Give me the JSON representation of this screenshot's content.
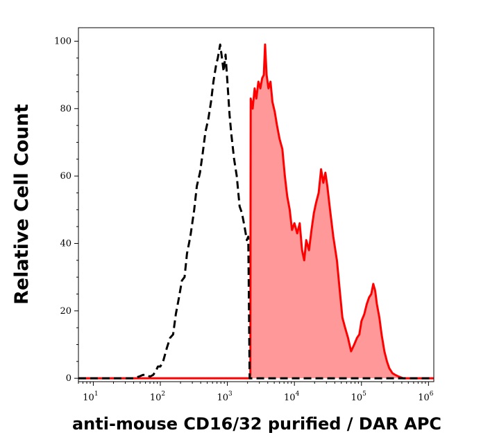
{
  "chart_data": {
    "type": "area",
    "title": "",
    "xlabel": "anti-mouse CD16/32 purified / DAR APC",
    "ylabel": "Relative Cell Count",
    "x_scale": "log",
    "xlim": [
      6,
      1200000
    ],
    "ylim": [
      -1,
      104
    ],
    "x_ticks": [
      {
        "base": "10",
        "exp": "1",
        "value": 10
      },
      {
        "base": "10",
        "exp": "2",
        "value": 100
      },
      {
        "base": "10",
        "exp": "3",
        "value": 1000
      },
      {
        "base": "10",
        "exp": "4",
        "value": 10000
      },
      {
        "base": "10",
        "exp": "5",
        "value": 100000
      },
      {
        "base": "10",
        "exp": "6",
        "value": 1000000
      }
    ],
    "y_ticks": [
      "0",
      "20",
      "40",
      "60",
      "80",
      "100"
    ],
    "grid": false,
    "series": [
      {
        "style": "dashed-black",
        "color": "#000000",
        "points": [
          [
            6,
            0
          ],
          [
            40,
            0
          ],
          [
            48,
            0.5
          ],
          [
            55,
            1
          ],
          [
            62,
            1
          ],
          [
            70,
            0.5
          ],
          [
            78,
            1
          ],
          [
            85,
            2
          ],
          [
            92,
            3.5
          ],
          [
            100,
            3.5
          ],
          [
            110,
            5
          ],
          [
            125,
            9
          ],
          [
            140,
            12
          ],
          [
            155,
            13
          ],
          [
            170,
            19
          ],
          [
            190,
            24
          ],
          [
            210,
            29
          ],
          [
            230,
            30
          ],
          [
            250,
            37
          ],
          [
            280,
            42
          ],
          [
            320,
            50
          ],
          [
            350,
            57
          ],
          [
            390,
            61
          ],
          [
            430,
            67
          ],
          [
            470,
            73
          ],
          [
            520,
            77
          ],
          [
            570,
            82
          ],
          [
            620,
            88
          ],
          [
            680,
            93
          ],
          [
            720,
            95
          ],
          [
            780,
            99
          ],
          [
            830,
            95
          ],
          [
            880,
            91
          ],
          [
            940,
            96
          ],
          [
            1000,
            88
          ],
          [
            1080,
            78
          ],
          [
            1150,
            72
          ],
          [
            1260,
            65
          ],
          [
            1380,
            60
          ],
          [
            1520,
            51
          ],
          [
            1650,
            49
          ],
          [
            1800,
            45
          ],
          [
            1950,
            41
          ],
          [
            2050,
            42
          ],
          [
            2150,
            0
          ],
          [
            2400,
            0
          ],
          [
            1200000,
            0
          ]
        ]
      },
      {
        "style": "filled-red",
        "color": "#ff0000",
        "fill": "#ff9999",
        "points": [
          [
            6,
            0
          ],
          [
            2150,
            0
          ],
          [
            2200,
            1
          ],
          [
            2230,
            83
          ],
          [
            2380,
            80
          ],
          [
            2550,
            86
          ],
          [
            2700,
            83
          ],
          [
            2900,
            88
          ],
          [
            3100,
            86
          ],
          [
            3300,
            89
          ],
          [
            3500,
            90
          ],
          [
            3650,
            99
          ],
          [
            3850,
            90
          ],
          [
            4100,
            86
          ],
          [
            4400,
            88
          ],
          [
            4700,
            82
          ],
          [
            5100,
            79
          ],
          [
            5500,
            75
          ],
          [
            6000,
            71
          ],
          [
            6600,
            68
          ],
          [
            7200,
            60
          ],
          [
            7800,
            54
          ],
          [
            8500,
            50
          ],
          [
            9200,
            44
          ],
          [
            10000,
            46
          ],
          [
            11000,
            43
          ],
          [
            12000,
            46
          ],
          [
            13000,
            38
          ],
          [
            14000,
            35
          ],
          [
            15000,
            41
          ],
          [
            16500,
            38
          ],
          [
            18000,
            44
          ],
          [
            19500,
            49
          ],
          [
            21000,
            52
          ],
          [
            23000,
            55
          ],
          [
            25000,
            62
          ],
          [
            27000,
            58
          ],
          [
            29000,
            61
          ],
          [
            31000,
            57
          ],
          [
            34000,
            50
          ],
          [
            38000,
            42
          ],
          [
            43000,
            35
          ],
          [
            48000,
            25
          ],
          [
            52000,
            18
          ],
          [
            57000,
            15
          ],
          [
            63000,
            12
          ],
          [
            70000,
            8
          ],
          [
            78000,
            10
          ],
          [
            86000,
            12
          ],
          [
            93000,
            13
          ],
          [
            100000,
            17
          ],
          [
            110000,
            19
          ],
          [
            120000,
            22
          ],
          [
            130000,
            24
          ],
          [
            140000,
            25
          ],
          [
            150000,
            28
          ],
          [
            160000,
            26
          ],
          [
            170000,
            22
          ],
          [
            185000,
            18
          ],
          [
            200000,
            13
          ],
          [
            220000,
            8
          ],
          [
            240000,
            5
          ],
          [
            260000,
            3
          ],
          [
            290000,
            1.5
          ],
          [
            320000,
            1
          ],
          [
            360000,
            0.5
          ],
          [
            420000,
            0
          ],
          [
            1200000,
            0
          ]
        ]
      }
    ]
  }
}
